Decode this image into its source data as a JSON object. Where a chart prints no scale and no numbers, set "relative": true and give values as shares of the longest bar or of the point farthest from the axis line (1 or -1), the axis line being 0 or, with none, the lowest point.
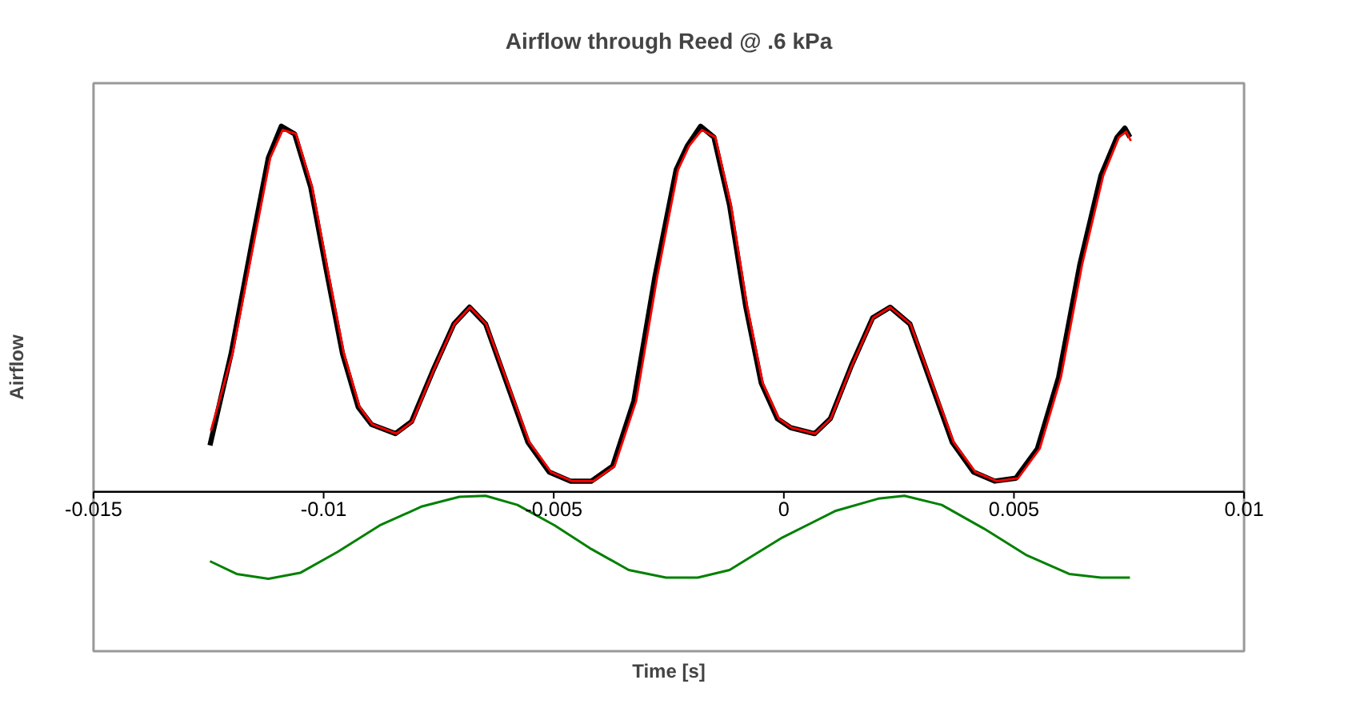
{
  "chart_data": {
    "type": "line",
    "title": "Airflow through Reed @ .6 kPa",
    "xlabel": "Time [s]",
    "ylabel": "Airflow",
    "relative": true,
    "xlim": [
      -0.015,
      0.01
    ],
    "xticks": [
      -0.015,
      -0.01,
      -0.005,
      0,
      0.005,
      0.01
    ],
    "grid": false,
    "marker": "none",
    "line_style": "solid",
    "series": [
      {
        "color": "#000000",
        "x": [
          -0.01247,
          -0.01201,
          -0.01155,
          -0.0112,
          -0.01092,
          -0.01063,
          -0.01028,
          -0.00994,
          -0.00959,
          -0.00925,
          -0.00896,
          -0.00844,
          -0.00809,
          -0.00763,
          -0.00717,
          -0.00683,
          -0.00648,
          -0.00602,
          -0.00556,
          -0.0051,
          -0.00464,
          -0.00418,
          -0.00372,
          -0.00326,
          -0.0028,
          -0.00234,
          -0.0021,
          -0.00181,
          -0.00152,
          -0.00118,
          -0.00083,
          -0.00049,
          -0.00014,
          0.00015,
          0.00067,
          0.00101,
          0.00147,
          0.00193,
          0.00231,
          0.00274,
          0.0032,
          0.00366,
          0.00412,
          0.00458,
          0.00504,
          0.00551,
          0.00597,
          0.00643,
          0.00689,
          0.00724,
          0.00741,
          0.00752
        ],
        "values": [
          0.127,
          0.378,
          0.686,
          0.914,
          1.0,
          0.979,
          0.833,
          0.605,
          0.378,
          0.232,
          0.184,
          0.159,
          0.192,
          0.33,
          0.459,
          0.505,
          0.459,
          0.297,
          0.135,
          0.054,
          0.029,
          0.029,
          0.07,
          0.248,
          0.589,
          0.881,
          0.946,
          1.0,
          0.97,
          0.784,
          0.508,
          0.297,
          0.2,
          0.175,
          0.159,
          0.2,
          0.346,
          0.476,
          0.505,
          0.459,
          0.297,
          0.135,
          0.054,
          0.029,
          0.037,
          0.118,
          0.313,
          0.621,
          0.865,
          0.97,
          0.995,
          0.97
        ]
      },
      {
        "color": "#ff0000",
        "x": [
          -0.01245,
          -0.01198,
          -0.01151,
          -0.01116,
          -0.01089,
          -0.0106,
          -0.01025,
          -0.00991,
          -0.00956,
          -0.00922,
          -0.00894,
          -0.00842,
          -0.00807,
          -0.00762,
          -0.00716,
          -0.00682,
          -0.00647,
          -0.006,
          -0.00553,
          -0.00506,
          -0.0046,
          -0.00414,
          -0.00368,
          -0.00321,
          -0.00275,
          -0.0023,
          -0.00206,
          -0.00178,
          -0.00149,
          -0.00115,
          -0.0008,
          -0.00046,
          -0.00011,
          0.00017,
          0.00068,
          0.00102,
          0.00148,
          0.00194,
          0.00231,
          0.00275,
          0.00322,
          0.00369,
          0.00416,
          0.00463,
          0.00509,
          0.00556,
          0.00602,
          0.00648,
          0.00694,
          0.00728,
          0.00744,
          0.00754
        ],
        "values": [
          0.167,
          0.378,
          0.686,
          0.914,
          0.99,
          0.979,
          0.833,
          0.605,
          0.378,
          0.232,
          0.184,
          0.159,
          0.192,
          0.33,
          0.459,
          0.505,
          0.459,
          0.297,
          0.135,
          0.054,
          0.029,
          0.029,
          0.07,
          0.248,
          0.589,
          0.881,
          0.946,
          0.99,
          0.97,
          0.784,
          0.508,
          0.297,
          0.2,
          0.175,
          0.159,
          0.2,
          0.346,
          0.476,
          0.505,
          0.459,
          0.297,
          0.135,
          0.054,
          0.029,
          0.037,
          0.118,
          0.313,
          0.621,
          0.865,
          0.97,
          0.985,
          0.96
        ]
      },
      {
        "color": "#008000",
        "x": [
          -0.01247,
          -0.01189,
          -0.0112,
          -0.01051,
          -0.0097,
          -0.00878,
          -0.00786,
          -0.00705,
          -0.00648,
          -0.00579,
          -0.00498,
          -0.00418,
          -0.00337,
          -0.00256,
          -0.00187,
          -0.00118,
          -3e-05,
          0.00113,
          0.00205,
          0.00262,
          0.00343,
          0.00435,
          0.00528,
          0.0062,
          0.00689,
          0.00752
        ],
        "values": [
          -0.19,
          -0.225,
          -0.238,
          -0.222,
          -0.165,
          -0.092,
          -0.04,
          -0.014,
          -0.011,
          -0.036,
          -0.092,
          -0.157,
          -0.214,
          -0.235,
          -0.235,
          -0.214,
          -0.125,
          -0.052,
          -0.019,
          -0.011,
          -0.036,
          -0.101,
          -0.174,
          -0.225,
          -0.235,
          -0.235
        ]
      }
    ]
  }
}
